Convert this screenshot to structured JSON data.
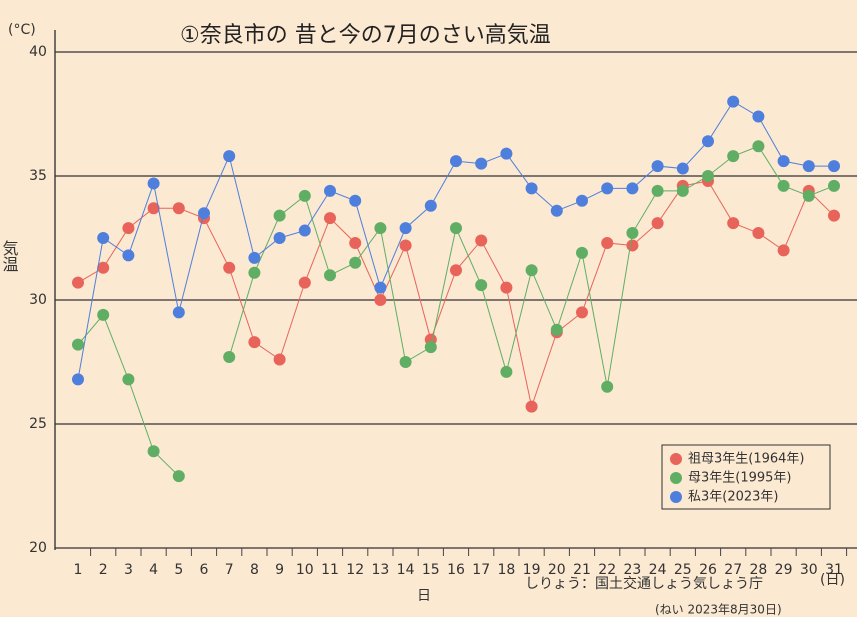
{
  "chart_data": {
    "type": "line",
    "title": "①奈良市の 昔と今の7月のさい高気温",
    "y_unit": "(°C)",
    "y_label": "気温",
    "x_label": "日",
    "x_unit": "(日)",
    "source": "しりょう：国土交通しょう気しょう庁",
    "source_note": "(ねい 2023年8月30日)",
    "categories": [
      1,
      2,
      3,
      4,
      5,
      6,
      7,
      8,
      9,
      10,
      11,
      12,
      13,
      14,
      15,
      16,
      17,
      18,
      19,
      20,
      21,
      22,
      23,
      24,
      25,
      26,
      27,
      28,
      29,
      30,
      31
    ],
    "series": [
      {
        "name": "祖母3年生(1964年)",
        "color": "#e8645a",
        "values": [
          30.7,
          31.3,
          32.9,
          33.7,
          33.7,
          33.3,
          31.3,
          28.3,
          27.6,
          30.7,
          33.3,
          32.3,
          30.0,
          32.2,
          28.4,
          31.2,
          32.4,
          30.5,
          25.7,
          28.7,
          29.5,
          32.3,
          32.2,
          33.1,
          34.6,
          34.8,
          33.1,
          32.7,
          32.0,
          34.4,
          33.4
        ]
      },
      {
        "name": "母3年生(1995年)",
        "color": "#5fae64",
        "values": [
          28.2,
          29.4,
          26.8,
          23.9,
          22.9,
          null,
          27.7,
          31.1,
          33.4,
          34.2,
          31.0,
          31.5,
          32.9,
          27.5,
          28.1,
          32.9,
          30.6,
          27.1,
          31.2,
          28.8,
          31.9,
          26.5,
          32.7,
          34.4,
          34.4,
          35.0,
          35.8,
          36.2,
          34.6,
          34.2,
          34.6
        ]
      },
      {
        "name": "私3年(2023年)",
        "color": "#4f7fdc",
        "values": [
          26.8,
          32.5,
          31.8,
          34.7,
          29.5,
          33.5,
          35.8,
          31.7,
          32.5,
          32.8,
          34.4,
          34.0,
          30.5,
          32.9,
          33.8,
          35.6,
          35.5,
          35.9,
          34.5,
          33.6,
          34.0,
          34.5,
          34.5,
          35.4,
          35.3,
          36.4,
          38.0,
          37.4,
          35.6,
          35.4,
          35.4
        ]
      }
    ],
    "ylim": [
      20,
      40
    ],
    "yticks": [
      20,
      25,
      30,
      35,
      40
    ],
    "grid": true,
    "legend": "lower right"
  }
}
